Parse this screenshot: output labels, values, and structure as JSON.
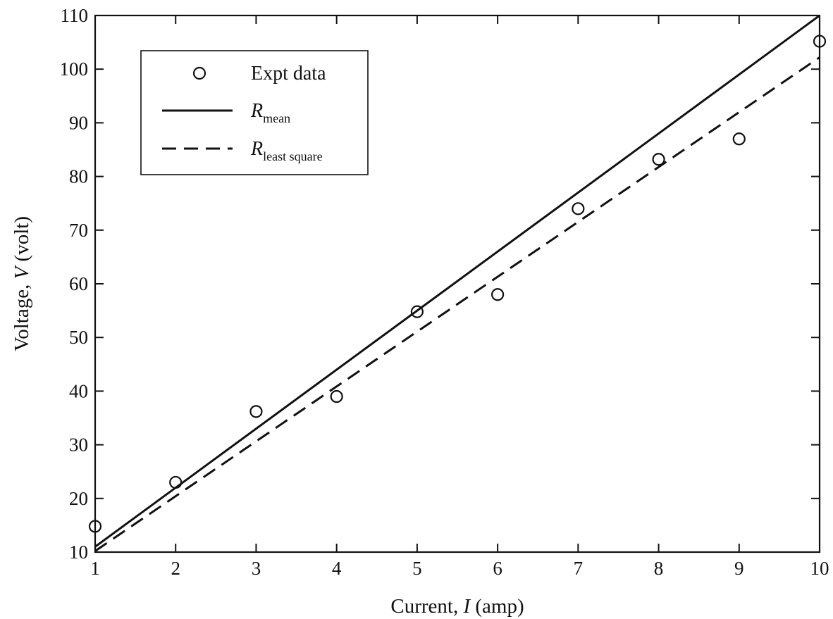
{
  "chart_data": {
    "type": "scatter",
    "xlabel_parts": [
      "Current, ",
      "I",
      " (amp)"
    ],
    "ylabel_parts": [
      "Voltage, ",
      "V",
      " (volt)"
    ],
    "xlim": [
      1,
      10
    ],
    "ylim": [
      10,
      110
    ],
    "x_ticks": [
      1,
      2,
      3,
      4,
      5,
      6,
      7,
      8,
      9,
      10
    ],
    "y_ticks": [
      10,
      20,
      30,
      40,
      50,
      60,
      70,
      80,
      90,
      100,
      110
    ],
    "grid": false,
    "legend_position": "top-left",
    "series": [
      {
        "name": "Expt data",
        "kind": "markers",
        "marker": "open-circle",
        "x": [
          1,
          2,
          3,
          4,
          5,
          6,
          7,
          8,
          9,
          10
        ],
        "y": [
          14.8,
          23.0,
          36.2,
          39.0,
          54.8,
          58.0,
          74.0,
          83.2,
          87.0,
          105.2
        ]
      },
      {
        "name_main": "R",
        "name_sub": "mean",
        "kind": "line",
        "style": "solid",
        "x": [
          1,
          10
        ],
        "y": [
          11.0,
          110.0
        ]
      },
      {
        "name_main": "R",
        "name_sub": "least square",
        "kind": "line",
        "style": "dashed",
        "x": [
          1,
          10
        ],
        "y": [
          10.2,
          102.2
        ]
      }
    ]
  },
  "colors": {
    "ink": "#111111",
    "background": "#ffffff"
  }
}
